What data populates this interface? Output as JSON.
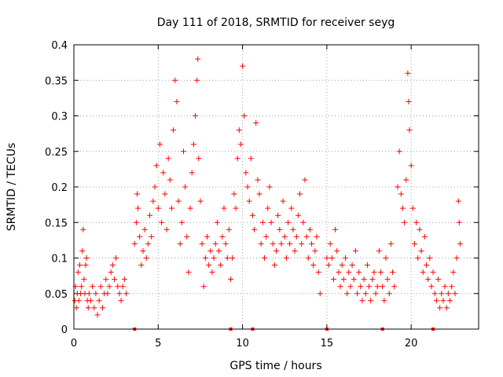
{
  "chart_data": {
    "type": "scatter",
    "title": "Day 111 of 2018, SRMTID for receiver seyg",
    "xlabel": "GPS time / hours",
    "ylabel": "SRMTID / TECUs",
    "xlim": [
      0,
      24
    ],
    "ylim": [
      0,
      0.4
    ],
    "xticks": [
      0,
      5,
      10,
      15,
      20
    ],
    "yticks": [
      0,
      0.05,
      0.1,
      0.15,
      0.2,
      0.25,
      0.3,
      0.35,
      0.4
    ],
    "grid": true,
    "marker": "+",
    "series_color": "#ff0000",
    "series": [
      {
        "name": "SRMTID",
        "points": [
          [
            0.05,
            0.04
          ],
          [
            0.1,
            0.06
          ],
          [
            0.15,
            0.03
          ],
          [
            0.2,
            0.05
          ],
          [
            0.25,
            0.08
          ],
          [
            0.3,
            0.04
          ],
          [
            0.35,
            0.09
          ],
          [
            0.4,
            0.05
          ],
          [
            0.45,
            0.06
          ],
          [
            0.5,
            0.11
          ],
          [
            0.55,
            0.14
          ],
          [
            0.6,
            0.07
          ],
          [
            0.65,
            0.05
          ],
          [
            0.7,
            0.09
          ],
          [
            0.75,
            0.1
          ],
          [
            0.8,
            0.04
          ],
          [
            0.85,
            0.03
          ],
          [
            0.9,
            0.05
          ],
          [
            1.0,
            0.04
          ],
          [
            1.1,
            0.06
          ],
          [
            1.2,
            0.03
          ],
          [
            1.3,
            0.05
          ],
          [
            1.4,
            0.02
          ],
          [
            1.5,
            0.04
          ],
          [
            1.6,
            0.06
          ],
          [
            1.7,
            0.03
          ],
          [
            1.8,
            0.05
          ],
          [
            1.9,
            0.07
          ],
          [
            2.0,
            0.05
          ],
          [
            2.1,
            0.06
          ],
          [
            2.2,
            0.08
          ],
          [
            2.3,
            0.09
          ],
          [
            2.4,
            0.07
          ],
          [
            2.5,
            0.1
          ],
          [
            2.6,
            0.06
          ],
          [
            2.7,
            0.05
          ],
          [
            2.8,
            0.04
          ],
          [
            2.9,
            0.06
          ],
          [
            3.0,
            0.07
          ],
          [
            3.1,
            0.05
          ],
          [
            3.6,
            0.12
          ],
          [
            3.7,
            0.15
          ],
          [
            3.75,
            0.19
          ],
          [
            3.8,
            0.17
          ],
          [
            3.9,
            0.13
          ],
          [
            4.0,
            0.09
          ],
          [
            4.1,
            0.11
          ],
          [
            4.2,
            0.14
          ],
          [
            4.3,
            0.1
          ],
          [
            4.4,
            0.12
          ],
          [
            4.5,
            0.16
          ],
          [
            4.6,
            0.13
          ],
          [
            4.7,
            0.18
          ],
          [
            4.8,
            0.2
          ],
          [
            4.9,
            0.23
          ],
          [
            5.0,
            0.17
          ],
          [
            5.1,
            0.26
          ],
          [
            5.2,
            0.15
          ],
          [
            5.3,
            0.22
          ],
          [
            5.4,
            0.19
          ],
          [
            5.5,
            0.14
          ],
          [
            5.6,
            0.24
          ],
          [
            5.7,
            0.21
          ],
          [
            5.8,
            0.17
          ],
          [
            5.9,
            0.28
          ],
          [
            6.0,
            0.35
          ],
          [
            6.1,
            0.32
          ],
          [
            6.2,
            0.18
          ],
          [
            6.3,
            0.12
          ],
          [
            6.4,
            0.15
          ],
          [
            6.5,
            0.25
          ],
          [
            6.6,
            0.2
          ],
          [
            6.7,
            0.13
          ],
          [
            6.8,
            0.08
          ],
          [
            6.9,
            0.17
          ],
          [
            7.0,
            0.22
          ],
          [
            7.1,
            0.26
          ],
          [
            7.2,
            0.3
          ],
          [
            7.3,
            0.35
          ],
          [
            7.35,
            0.38
          ],
          [
            7.4,
            0.24
          ],
          [
            7.5,
            0.18
          ],
          [
            7.6,
            0.12
          ],
          [
            7.7,
            0.06
          ],
          [
            7.8,
            0.1
          ],
          [
            7.9,
            0.13
          ],
          [
            8.0,
            0.09
          ],
          [
            8.1,
            0.11
          ],
          [
            8.2,
            0.08
          ],
          [
            8.3,
            0.1
          ],
          [
            8.4,
            0.12
          ],
          [
            8.5,
            0.15
          ],
          [
            8.6,
            0.11
          ],
          [
            8.7,
            0.09
          ],
          [
            8.8,
            0.13
          ],
          [
            8.9,
            0.17
          ],
          [
            9.0,
            0.12
          ],
          [
            9.1,
            0.1
          ],
          [
            9.2,
            0.14
          ],
          [
            9.3,
            0.07
          ],
          [
            9.4,
            0.1
          ],
          [
            9.5,
            0.19
          ],
          [
            9.6,
            0.17
          ],
          [
            9.7,
            0.24
          ],
          [
            9.8,
            0.28
          ],
          [
            9.9,
            0.26
          ],
          [
            10.0,
            0.37
          ],
          [
            10.1,
            0.3
          ],
          [
            10.2,
            0.22
          ],
          [
            10.3,
            0.2
          ],
          [
            10.4,
            0.18
          ],
          [
            10.5,
            0.24
          ],
          [
            10.6,
            0.16
          ],
          [
            10.7,
            0.14
          ],
          [
            10.8,
            0.29
          ],
          [
            10.9,
            0.21
          ],
          [
            11.0,
            0.19
          ],
          [
            11.1,
            0.12
          ],
          [
            11.2,
            0.15
          ],
          [
            11.3,
            0.1
          ],
          [
            11.4,
            0.13
          ],
          [
            11.5,
            0.17
          ],
          [
            11.6,
            0.2
          ],
          [
            11.7,
            0.15
          ],
          [
            11.8,
            0.12
          ],
          [
            11.9,
            0.09
          ],
          [
            12.0,
            0.11
          ],
          [
            12.1,
            0.16
          ],
          [
            12.2,
            0.14
          ],
          [
            12.3,
            0.12
          ],
          [
            12.4,
            0.18
          ],
          [
            12.5,
            0.13
          ],
          [
            12.6,
            0.1
          ],
          [
            12.7,
            0.15
          ],
          [
            12.8,
            0.12
          ],
          [
            12.9,
            0.17
          ],
          [
            13.0,
            0.14
          ],
          [
            13.1,
            0.11
          ],
          [
            13.2,
            0.13
          ],
          [
            13.3,
            0.16
          ],
          [
            13.4,
            0.19
          ],
          [
            13.5,
            0.12
          ],
          [
            13.6,
            0.15
          ],
          [
            13.7,
            0.21
          ],
          [
            13.8,
            0.13
          ],
          [
            13.9,
            0.1
          ],
          [
            14.0,
            0.14
          ],
          [
            14.1,
            0.12
          ],
          [
            14.2,
            0.09
          ],
          [
            14.3,
            0.11
          ],
          [
            14.4,
            0.13
          ],
          [
            14.5,
            0.08
          ],
          [
            14.6,
            0.05
          ],
          [
            15.0,
            0.1
          ],
          [
            15.1,
            0.09
          ],
          [
            15.2,
            0.12
          ],
          [
            15.3,
            0.1
          ],
          [
            15.4,
            0.07
          ],
          [
            15.5,
            0.14
          ],
          [
            15.6,
            0.11
          ],
          [
            15.7,
            0.08
          ],
          [
            15.8,
            0.06
          ],
          [
            15.9,
            0.09
          ],
          [
            16.0,
            0.07
          ],
          [
            16.1,
            0.1
          ],
          [
            16.2,
            0.05
          ],
          [
            16.3,
            0.08
          ],
          [
            16.4,
            0.06
          ],
          [
            16.5,
            0.09
          ],
          [
            16.6,
            0.07
          ],
          [
            16.7,
            0.11
          ],
          [
            16.8,
            0.05
          ],
          [
            16.9,
            0.08
          ],
          [
            17.0,
            0.06
          ],
          [
            17.1,
            0.04
          ],
          [
            17.2,
            0.07
          ],
          [
            17.3,
            0.05
          ],
          [
            17.4,
            0.09
          ],
          [
            17.5,
            0.06
          ],
          [
            17.6,
            0.04
          ],
          [
            17.7,
            0.07
          ],
          [
            17.8,
            0.08
          ],
          [
            17.9,
            0.05
          ],
          [
            18.0,
            0.06
          ],
          [
            18.1,
            0.11
          ],
          [
            18.2,
            0.08
          ],
          [
            18.3,
            0.06
          ],
          [
            18.4,
            0.04
          ],
          [
            18.5,
            0.1
          ],
          [
            18.6,
            0.07
          ],
          [
            18.7,
            0.05
          ],
          [
            18.8,
            0.12
          ],
          [
            18.9,
            0.08
          ],
          [
            19.0,
            0.06
          ],
          [
            19.2,
            0.2
          ],
          [
            19.3,
            0.25
          ],
          [
            19.4,
            0.19
          ],
          [
            19.5,
            0.17
          ],
          [
            19.6,
            0.15
          ],
          [
            19.7,
            0.21
          ],
          [
            19.8,
            0.36
          ],
          [
            19.85,
            0.32
          ],
          [
            19.9,
            0.28
          ],
          [
            20.0,
            0.23
          ],
          [
            20.1,
            0.17
          ],
          [
            20.2,
            0.12
          ],
          [
            20.3,
            0.15
          ],
          [
            20.4,
            0.1
          ],
          [
            20.5,
            0.14
          ],
          [
            20.6,
            0.11
          ],
          [
            20.7,
            0.08
          ],
          [
            20.8,
            0.13
          ],
          [
            20.9,
            0.09
          ],
          [
            21.0,
            0.07
          ],
          [
            21.1,
            0.1
          ],
          [
            21.2,
            0.06
          ],
          [
            21.3,
            0.08
          ],
          [
            21.4,
            0.05
          ],
          [
            21.5,
            0.04
          ],
          [
            21.6,
            0.07
          ],
          [
            21.7,
            0.03
          ],
          [
            21.8,
            0.05
          ],
          [
            21.9,
            0.04
          ],
          [
            22.0,
            0.06
          ],
          [
            22.1,
            0.03
          ],
          [
            22.2,
            0.05
          ],
          [
            22.3,
            0.04
          ],
          [
            22.4,
            0.06
          ],
          [
            22.5,
            0.08
          ],
          [
            22.6,
            0.05
          ],
          [
            22.7,
            0.1
          ],
          [
            22.8,
            0.18
          ],
          [
            22.85,
            0.15
          ],
          [
            22.9,
            0.12
          ]
        ]
      }
    ],
    "axis_markers_x": [
      3.6,
      9.3,
      10.6,
      15.0,
      18.3,
      21.3
    ]
  }
}
